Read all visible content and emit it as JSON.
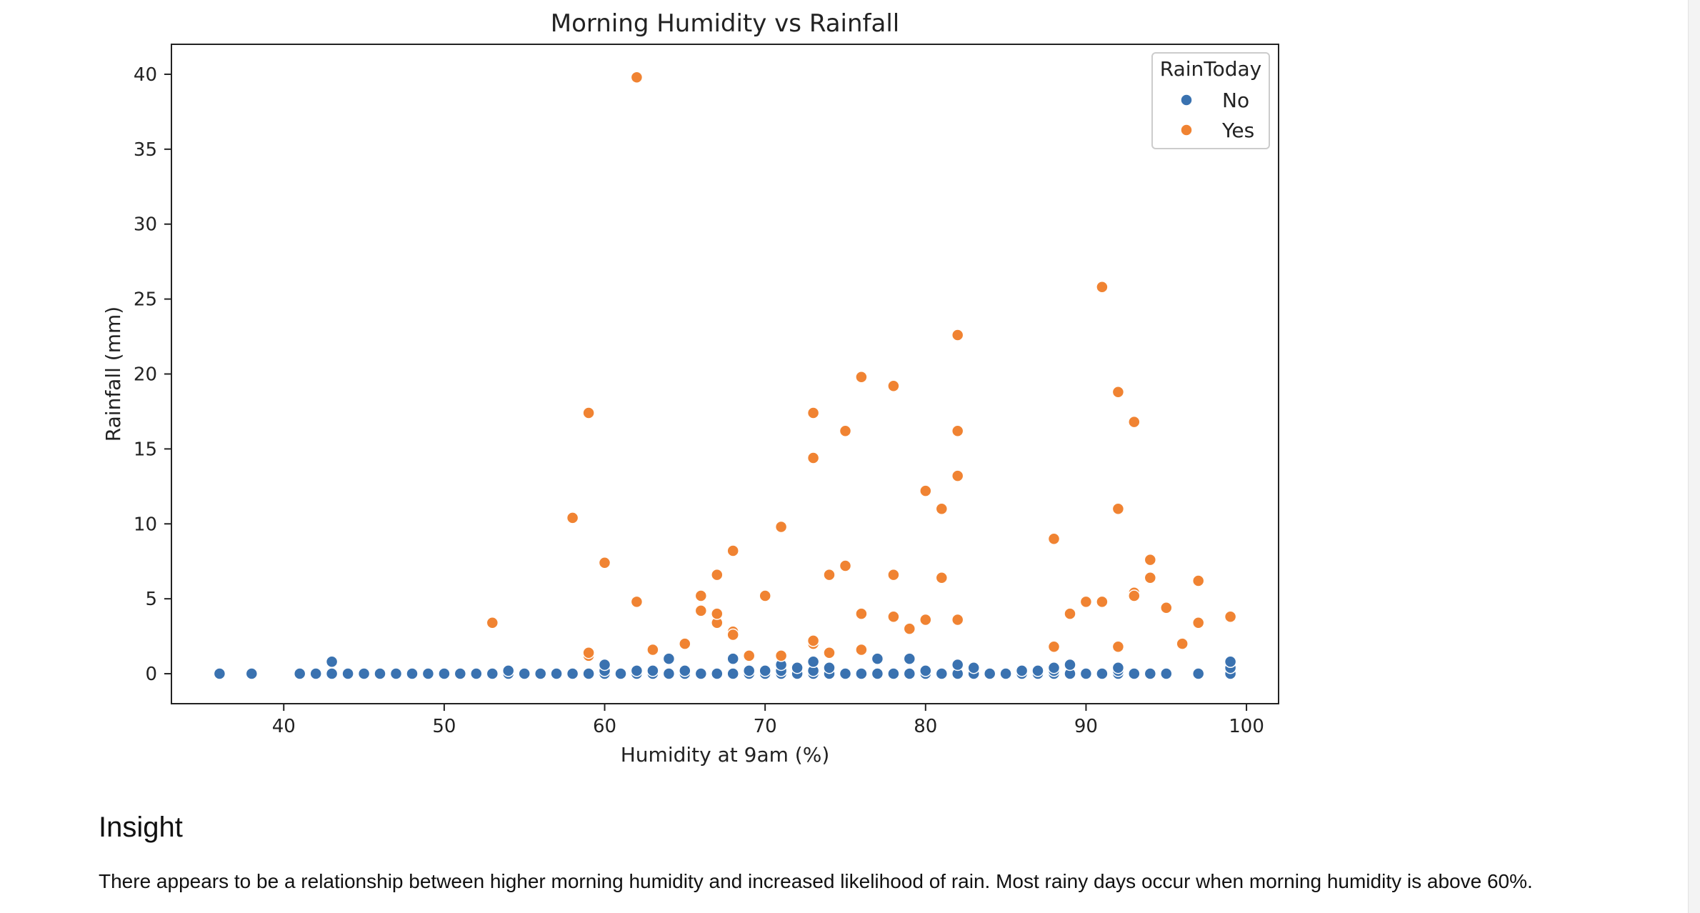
{
  "colors": {
    "no": "#3a72b0",
    "yes": "#f08332",
    "axis": "#222222",
    "text": "#222222"
  },
  "chart_data": {
    "type": "scatter",
    "title": "Morning Humidity vs Rainfall",
    "xlabel": "Humidity at 9am (%)",
    "ylabel": "Rainfall (mm)",
    "xlim": [
      33,
      102
    ],
    "ylim": [
      -2,
      42
    ],
    "xticks": [
      40,
      50,
      60,
      70,
      80,
      90,
      100
    ],
    "yticks": [
      0,
      5,
      10,
      15,
      20,
      25,
      30,
      35,
      40
    ],
    "grid": false,
    "legend": {
      "title": "RainToday",
      "placement": "upper right",
      "entries": [
        "No",
        "Yes"
      ]
    },
    "series": [
      {
        "name": "No",
        "color": "#3a72b0",
        "points": [
          [
            36,
            0
          ],
          [
            38,
            0
          ],
          [
            41,
            0
          ],
          [
            42,
            0
          ],
          [
            43,
            0
          ],
          [
            43,
            0.8
          ],
          [
            44,
            0
          ],
          [
            45,
            0
          ],
          [
            46,
            0
          ],
          [
            47,
            0
          ],
          [
            48,
            0
          ],
          [
            49,
            0
          ],
          [
            50,
            0
          ],
          [
            51,
            0
          ],
          [
            52,
            0
          ],
          [
            53,
            0
          ],
          [
            54,
            0
          ],
          [
            54,
            0.2
          ],
          [
            55,
            0
          ],
          [
            56,
            0
          ],
          [
            57,
            0
          ],
          [
            58,
            0
          ],
          [
            59,
            0
          ],
          [
            60,
            0
          ],
          [
            60,
            0.2
          ],
          [
            60,
            0.6
          ],
          [
            61,
            0
          ],
          [
            62,
            0
          ],
          [
            62,
            0.2
          ],
          [
            63,
            0
          ],
          [
            63,
            0.2
          ],
          [
            64,
            0
          ],
          [
            64,
            1.0
          ],
          [
            65,
            0
          ],
          [
            65,
            0.2
          ],
          [
            66,
            0
          ],
          [
            67,
            0
          ],
          [
            68,
            0
          ],
          [
            68,
            1.0
          ],
          [
            69,
            0
          ],
          [
            69,
            0.2
          ],
          [
            70,
            0
          ],
          [
            70,
            0.2
          ],
          [
            71,
            0
          ],
          [
            71,
            0.2
          ],
          [
            71,
            0.6
          ],
          [
            72,
            0
          ],
          [
            72,
            0.4
          ],
          [
            73,
            0
          ],
          [
            73,
            0.2
          ],
          [
            73,
            0.8
          ],
          [
            74,
            0
          ],
          [
            74,
            0.4
          ],
          [
            75,
            0
          ],
          [
            76,
            0
          ],
          [
            77,
            0
          ],
          [
            77,
            1.0
          ],
          [
            78,
            0
          ],
          [
            79,
            0
          ],
          [
            79,
            1.0
          ],
          [
            80,
            0
          ],
          [
            80,
            0.2
          ],
          [
            81,
            0
          ],
          [
            82,
            0
          ],
          [
            82,
            0.6
          ],
          [
            83,
            0
          ],
          [
            83,
            0.4
          ],
          [
            84,
            0
          ],
          [
            85,
            0
          ],
          [
            86,
            0
          ],
          [
            86,
            0.2
          ],
          [
            87,
            0
          ],
          [
            87,
            0.2
          ],
          [
            88,
            0
          ],
          [
            88,
            0.2
          ],
          [
            88,
            0.4
          ],
          [
            89,
            0
          ],
          [
            89,
            0.6
          ],
          [
            90,
            0
          ],
          [
            91,
            0
          ],
          [
            92,
            0
          ],
          [
            92,
            0.2
          ],
          [
            92,
            0.4
          ],
          [
            93,
            0
          ],
          [
            94,
            0
          ],
          [
            95,
            0
          ],
          [
            97,
            0
          ],
          [
            99,
            0
          ],
          [
            99,
            0.4
          ],
          [
            99,
            0.8
          ]
        ]
      },
      {
        "name": "Yes",
        "color": "#f08332",
        "points": [
          [
            53,
            3.4
          ],
          [
            58,
            10.4
          ],
          [
            59,
            17.4
          ],
          [
            59,
            1.2
          ],
          [
            59,
            1.4
          ],
          [
            60,
            7.4
          ],
          [
            62,
            39.8
          ],
          [
            62,
            4.8
          ],
          [
            63,
            1.6
          ],
          [
            65,
            2.0
          ],
          [
            66,
            5.2
          ],
          [
            66,
            4.2
          ],
          [
            67,
            3.4
          ],
          [
            67,
            4.0
          ],
          [
            67,
            6.6
          ],
          [
            68,
            8.2
          ],
          [
            68,
            2.8
          ],
          [
            68,
            2.6
          ],
          [
            69,
            1.2
          ],
          [
            70,
            5.2
          ],
          [
            71,
            9.8
          ],
          [
            71,
            1.2
          ],
          [
            73,
            17.4
          ],
          [
            73,
            14.4
          ],
          [
            73,
            2.0
          ],
          [
            73,
            2.2
          ],
          [
            74,
            6.6
          ],
          [
            74,
            1.4
          ],
          [
            75,
            16.2
          ],
          [
            75,
            7.2
          ],
          [
            76,
            19.8
          ],
          [
            76,
            4.0
          ],
          [
            76,
            1.6
          ],
          [
            78,
            19.2
          ],
          [
            78,
            6.6
          ],
          [
            78,
            3.8
          ],
          [
            79,
            3.0
          ],
          [
            80,
            12.2
          ],
          [
            80,
            3.6
          ],
          [
            81,
            11.0
          ],
          [
            81,
            6.4
          ],
          [
            82,
            22.6
          ],
          [
            82,
            16.2
          ],
          [
            82,
            13.2
          ],
          [
            82,
            3.6
          ],
          [
            88,
            9.0
          ],
          [
            88,
            1.8
          ],
          [
            89,
            4.0
          ],
          [
            90,
            4.8
          ],
          [
            91,
            25.8
          ],
          [
            91,
            4.8
          ],
          [
            92,
            18.8
          ],
          [
            92,
            11.0
          ],
          [
            92,
            1.8
          ],
          [
            93,
            16.8
          ],
          [
            93,
            5.4
          ],
          [
            93,
            5.2
          ],
          [
            94,
            7.6
          ],
          [
            94,
            6.4
          ],
          [
            95,
            4.4
          ],
          [
            96,
            2.0
          ],
          [
            97,
            6.2
          ],
          [
            97,
            3.4
          ],
          [
            99,
            3.8
          ]
        ]
      }
    ]
  },
  "insight": {
    "heading": "Insight",
    "text": "There appears to be a relationship between higher morning humidity and increased likelihood of rain. Most rainy days occur when morning humidity is above 60%."
  }
}
